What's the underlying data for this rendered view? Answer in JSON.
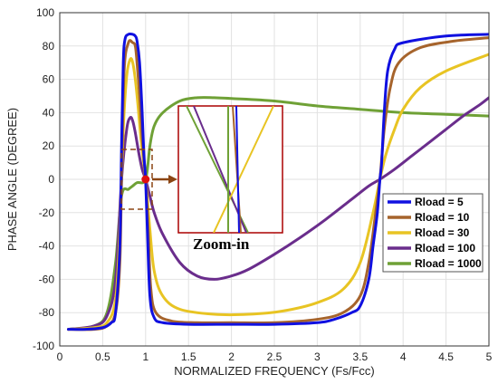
{
  "chart_data": {
    "type": "line",
    "title": "",
    "xlabel": "NORMALIZED FREQUENCY (Fs/Fcc)",
    "ylabel": "PHASE ANGLE (DEGREE)",
    "xlim": [
      0,
      5
    ],
    "ylim": [
      -100,
      100
    ],
    "xticks": [
      0,
      0.5,
      1,
      1.5,
      2,
      2.5,
      3,
      3.5,
      4,
      4.5,
      5
    ],
    "yticks": [
      -100,
      -80,
      -60,
      -40,
      -20,
      0,
      20,
      40,
      60,
      80,
      100
    ],
    "grid": true,
    "legend_position": "right",
    "series": [
      {
        "name": "Rload = 5",
        "color": "#1010e0",
        "points": [
          [
            0.1,
            -90
          ],
          [
            0.3,
            -90
          ],
          [
            0.5,
            -89
          ],
          [
            0.6,
            -86
          ],
          [
            0.65,
            -80
          ],
          [
            0.7,
            -40
          ],
          [
            0.72,
            20
          ],
          [
            0.74,
            70
          ],
          [
            0.76,
            84
          ],
          [
            0.8,
            87
          ],
          [
            0.85,
            87
          ],
          [
            0.88,
            86
          ],
          [
            0.9,
            83
          ],
          [
            0.93,
            70
          ],
          [
            0.96,
            40
          ],
          [
            0.98,
            15
          ],
          [
            1.0,
            0
          ],
          [
            1.02,
            -30
          ],
          [
            1.05,
            -70
          ],
          [
            1.1,
            -83
          ],
          [
            1.2,
            -86
          ],
          [
            1.5,
            -87
          ],
          [
            2.0,
            -87
          ],
          [
            2.5,
            -87
          ],
          [
            3.0,
            -86
          ],
          [
            3.2,
            -84
          ],
          [
            3.4,
            -80
          ],
          [
            3.5,
            -76
          ],
          [
            3.6,
            -60
          ],
          [
            3.65,
            -40
          ],
          [
            3.7,
            -20
          ],
          [
            3.73,
            0
          ],
          [
            3.75,
            10
          ],
          [
            3.78,
            40
          ],
          [
            3.82,
            65
          ],
          [
            3.9,
            78
          ],
          [
            4.0,
            82
          ],
          [
            4.5,
            86
          ],
          [
            5.0,
            87
          ]
        ]
      },
      {
        "name": "Rload = 10",
        "color": "#a6642c",
        "points": [
          [
            0.1,
            -90
          ],
          [
            0.4,
            -90
          ],
          [
            0.55,
            -88
          ],
          [
            0.65,
            -80
          ],
          [
            0.7,
            -50
          ],
          [
            0.72,
            0
          ],
          [
            0.75,
            65
          ],
          [
            0.8,
            82
          ],
          [
            0.85,
            82
          ],
          [
            0.88,
            80
          ],
          [
            0.9,
            70
          ],
          [
            0.93,
            50
          ],
          [
            0.96,
            25
          ],
          [
            1.0,
            0
          ],
          [
            1.03,
            -30
          ],
          [
            1.06,
            -65
          ],
          [
            1.12,
            -80
          ],
          [
            1.3,
            -85
          ],
          [
            1.6,
            -86
          ],
          [
            2.0,
            -86
          ],
          [
            2.5,
            -86
          ],
          [
            3.0,
            -84
          ],
          [
            3.3,
            -80
          ],
          [
            3.5,
            -70
          ],
          [
            3.6,
            -50
          ],
          [
            3.68,
            -20
          ],
          [
            3.73,
            0
          ],
          [
            3.78,
            30
          ],
          [
            3.85,
            55
          ],
          [
            3.95,
            70
          ],
          [
            4.2,
            79
          ],
          [
            4.6,
            83
          ],
          [
            5.0,
            85
          ]
        ]
      },
      {
        "name": "Rload = 30",
        "color": "#e8c423",
        "points": [
          [
            0.1,
            -90
          ],
          [
            0.4,
            -89
          ],
          [
            0.55,
            -86
          ],
          [
            0.65,
            -72
          ],
          [
            0.7,
            -30
          ],
          [
            0.74,
            30
          ],
          [
            0.78,
            62
          ],
          [
            0.82,
            72
          ],
          [
            0.85,
            70
          ],
          [
            0.88,
            60
          ],
          [
            0.91,
            45
          ],
          [
            0.95,
            22
          ],
          [
            1.0,
            0
          ],
          [
            1.05,
            -30
          ],
          [
            1.1,
            -55
          ],
          [
            1.2,
            -70
          ],
          [
            1.4,
            -78
          ],
          [
            1.8,
            -81
          ],
          [
            2.2,
            -81
          ],
          [
            2.6,
            -79
          ],
          [
            3.0,
            -74
          ],
          [
            3.3,
            -66
          ],
          [
            3.5,
            -50
          ],
          [
            3.65,
            -20
          ],
          [
            3.73,
            0
          ],
          [
            3.8,
            15
          ],
          [
            3.9,
            30
          ],
          [
            4.0,
            42
          ],
          [
            4.2,
            55
          ],
          [
            4.5,
            65
          ],
          [
            5.0,
            75
          ]
        ]
      },
      {
        "name": "Rload = 100",
        "color": "#6a2d8c",
        "points": [
          [
            0.1,
            -90
          ],
          [
            0.4,
            -88
          ],
          [
            0.55,
            -82
          ],
          [
            0.65,
            -60
          ],
          [
            0.72,
            0
          ],
          [
            0.78,
            30
          ],
          [
            0.82,
            37
          ],
          [
            0.85,
            35
          ],
          [
            0.88,
            28
          ],
          [
            0.92,
            16
          ],
          [
            0.96,
            6
          ],
          [
            1.0,
            0
          ],
          [
            1.05,
            -10
          ],
          [
            1.1,
            -20
          ],
          [
            1.2,
            -33
          ],
          [
            1.4,
            -50
          ],
          [
            1.6,
            -58
          ],
          [
            1.8,
            -60
          ],
          [
            2.0,
            -58
          ],
          [
            2.2,
            -54
          ],
          [
            2.5,
            -45
          ],
          [
            2.8,
            -35
          ],
          [
            3.1,
            -24
          ],
          [
            3.4,
            -12
          ],
          [
            3.6,
            -4
          ],
          [
            3.73,
            0
          ],
          [
            3.9,
            6
          ],
          [
            4.1,
            14
          ],
          [
            4.3,
            22
          ],
          [
            4.5,
            30
          ],
          [
            4.7,
            38
          ],
          [
            4.9,
            45
          ],
          [
            5.0,
            49
          ]
        ]
      },
      {
        "name": "Rload = 1000",
        "color": "#6fa136",
        "points": [
          [
            0.1,
            -90
          ],
          [
            0.4,
            -88
          ],
          [
            0.55,
            -80
          ],
          [
            0.65,
            -50
          ],
          [
            0.72,
            -10
          ],
          [
            0.8,
            -6
          ],
          [
            0.85,
            -4
          ],
          [
            0.9,
            -2
          ],
          [
            1.0,
            0
          ],
          [
            1.05,
            20
          ],
          [
            1.1,
            32
          ],
          [
            1.2,
            40
          ],
          [
            1.4,
            47
          ],
          [
            1.6,
            49
          ],
          [
            1.8,
            49
          ],
          [
            2.0,
            48.5
          ],
          [
            2.5,
            47
          ],
          [
            3.0,
            44
          ],
          [
            3.5,
            42
          ],
          [
            4.0,
            40
          ],
          [
            4.5,
            39
          ],
          [
            5.0,
            38
          ]
        ]
      }
    ],
    "annotations": {
      "marker": [
        1,
        0
      ],
      "zoom_label": "Zoom-in"
    }
  }
}
